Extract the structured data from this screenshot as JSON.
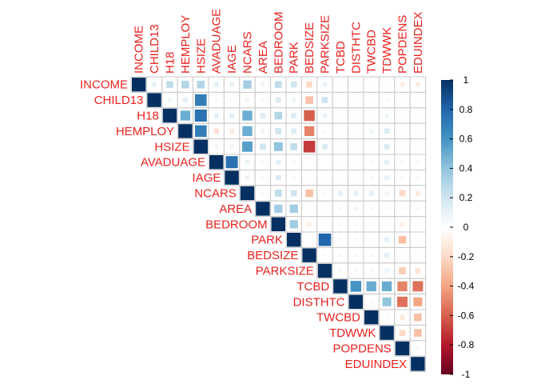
{
  "chart_data": {
    "type": "heatmap",
    "subtype": "correlation-matrix-upper-square",
    "variables": [
      "INCOME",
      "CHILD13",
      "H18",
      "HEMPLOY",
      "HSIZE",
      "AVADUAGE",
      "IAGE",
      "NCARS",
      "AREA",
      "BEDROOM",
      "PARK",
      "BEDSIZE",
      "PARKSIZE",
      "TCBD",
      "DISTHTC",
      "TWCBD",
      "TDWWK",
      "POPDENS",
      "EDUINDEX"
    ],
    "label_color": "#e8231f",
    "colorbar": {
      "range": [
        -1,
        1
      ],
      "ticks": [
        1,
        0.8,
        0.6,
        0.4,
        0.2,
        0,
        -0.2,
        -0.4,
        -0.6,
        -0.8,
        -1
      ],
      "tick_labels": [
        "1",
        "0.8",
        "0.6",
        "0.4",
        "0.2",
        "0",
        "-0.2",
        "-0.4",
        "-0.6",
        "-0.8",
        "-1"
      ],
      "colors": [
        "#67001f",
        "#b2182b",
        "#d6604d",
        "#f4a582",
        "#fddbc7",
        "#ffffff",
        "#d1e5f0",
        "#92c5de",
        "#4393c3",
        "#2166ac",
        "#053061"
      ]
    },
    "values": [
      [
        1,
        0.1,
        0.25,
        0.3,
        0.3,
        0.12,
        0.1,
        0.35,
        0.08,
        0.25,
        0.2,
        -0.2,
        0.1,
        -0.03,
        0.03,
        0.03,
        0.03,
        -0.1,
        -0.1
      ],
      [
        null,
        1,
        0.08,
        0.12,
        0.7,
        0.05,
        0.05,
        0.08,
        0.05,
        0.15,
        0.08,
        -0.3,
        0.2,
        0.03,
        0.02,
        0.03,
        0.05,
        0.02,
        0.03
      ],
      [
        null,
        null,
        1,
        0.5,
        0.75,
        0.12,
        0.12,
        0.5,
        0.15,
        0.3,
        0.15,
        -0.6,
        0.1,
        0.03,
        0.03,
        0.03,
        0.08,
        0.02,
        0.03
      ],
      [
        null,
        null,
        null,
        1,
        0.7,
        -0.15,
        -0.12,
        0.5,
        0.08,
        0.2,
        0.15,
        -0.5,
        0.05,
        0.02,
        0.03,
        0.08,
        0.15,
        0.02,
        0.02
      ],
      [
        null,
        null,
        null,
        null,
        1,
        0.08,
        0.08,
        0.55,
        0.2,
        0.4,
        0.25,
        -0.7,
        0.15,
        0.03,
        0.03,
        0.03,
        0.15,
        0.02,
        0.03
      ],
      [
        null,
        null,
        null,
        null,
        null,
        1,
        0.75,
        0.1,
        0.05,
        0.12,
        0.05,
        0.0,
        0.0,
        0.02,
        0.02,
        0.05,
        0.12,
        0.05,
        0.05
      ],
      [
        null,
        null,
        null,
        null,
        null,
        null,
        1,
        0.1,
        0.05,
        0.15,
        0.05,
        0.02,
        0.02,
        0.03,
        0.03,
        0.05,
        0.1,
        0.05,
        0.05
      ],
      [
        null,
        null,
        null,
        null,
        null,
        null,
        null,
        1,
        0.05,
        0.25,
        0.2,
        -0.3,
        0.05,
        0.12,
        0.12,
        0.12,
        0.08,
        -0.2,
        -0.12
      ],
      [
        null,
        null,
        null,
        null,
        null,
        null,
        null,
        null,
        1,
        0.35,
        0.35,
        0.03,
        0.02,
        0.05,
        0.08,
        0.05,
        0.05,
        -0.05,
        -0.05
      ],
      [
        null,
        null,
        null,
        null,
        null,
        null,
        null,
        null,
        null,
        1,
        0.35,
        -0.1,
        0.05,
        0.05,
        0.05,
        0.05,
        0.05,
        -0.1,
        -0.05
      ],
      [
        null,
        null,
        null,
        null,
        null,
        null,
        null,
        null,
        null,
        null,
        1,
        0.02,
        0.8,
        0.05,
        0.05,
        0.05,
        0.12,
        -0.3,
        -0.05
      ],
      [
        null,
        null,
        null,
        null,
        null,
        null,
        null,
        null,
        null,
        null,
        null,
        1,
        0.05,
        0.05,
        0.05,
        0.05,
        0.12,
        -0.03,
        -0.03
      ],
      [
        null,
        null,
        null,
        null,
        null,
        null,
        null,
        null,
        null,
        null,
        null,
        null,
        1,
        0.05,
        0.05,
        0.05,
        0.1,
        -0.25,
        -0.15
      ],
      [
        null,
        null,
        null,
        null,
        null,
        null,
        null,
        null,
        null,
        null,
        null,
        null,
        null,
        1,
        0.6,
        0.5,
        0.5,
        -0.5,
        -0.55
      ],
      [
        null,
        null,
        null,
        null,
        null,
        null,
        null,
        null,
        null,
        null,
        null,
        null,
        null,
        null,
        1,
        0.05,
        0.4,
        -0.55,
        -0.4
      ],
      [
        null,
        null,
        null,
        null,
        null,
        null,
        null,
        null,
        null,
        null,
        null,
        null,
        null,
        null,
        null,
        1,
        0.05,
        -0.12,
        -0.3
      ],
      [
        null,
        null,
        null,
        null,
        null,
        null,
        null,
        null,
        null,
        null,
        null,
        null,
        null,
        null,
        null,
        null,
        1,
        -0.2,
        -0.3
      ],
      [
        null,
        null,
        null,
        null,
        null,
        null,
        null,
        null,
        null,
        null,
        null,
        null,
        null,
        null,
        null,
        null,
        null,
        1,
        0.05
      ],
      [
        null,
        null,
        null,
        null,
        null,
        null,
        null,
        null,
        null,
        null,
        null,
        null,
        null,
        null,
        null,
        null,
        null,
        null,
        1
      ]
    ],
    "title": "",
    "grid": true
  }
}
